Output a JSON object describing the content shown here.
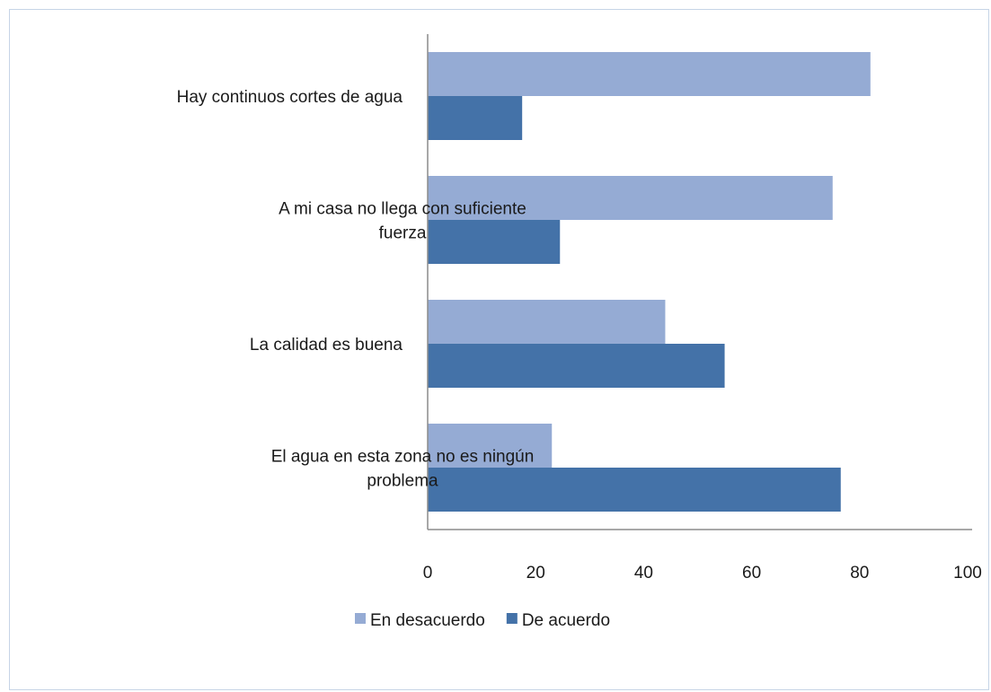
{
  "chart_data": {
    "type": "bar",
    "orientation": "horizontal",
    "title": "",
    "xlabel": "",
    "ylabel": "",
    "categories": [
      [
        "Hay continuos cortes de agua"
      ],
      [
        "A mi casa no llega con suficiente",
        "fuerza"
      ],
      [
        "La calidad es buena"
      ],
      [
        "El agua en esta zona no es ningún",
        "problema"
      ]
    ],
    "series": [
      {
        "name": "En desacuerdo",
        "color": "#95abd4",
        "values": [
          82,
          75,
          44,
          23
        ]
      },
      {
        "name": "De acuerdo",
        "color": "#4472a8",
        "values": [
          17.5,
          24.5,
          55,
          76.5
        ]
      }
    ],
    "xlim": [
      0,
      100
    ],
    "xticks": [
      "0",
      "20",
      "40",
      "60",
      "80",
      "100"
    ],
    "grid": false,
    "legend_position": "bottom"
  }
}
